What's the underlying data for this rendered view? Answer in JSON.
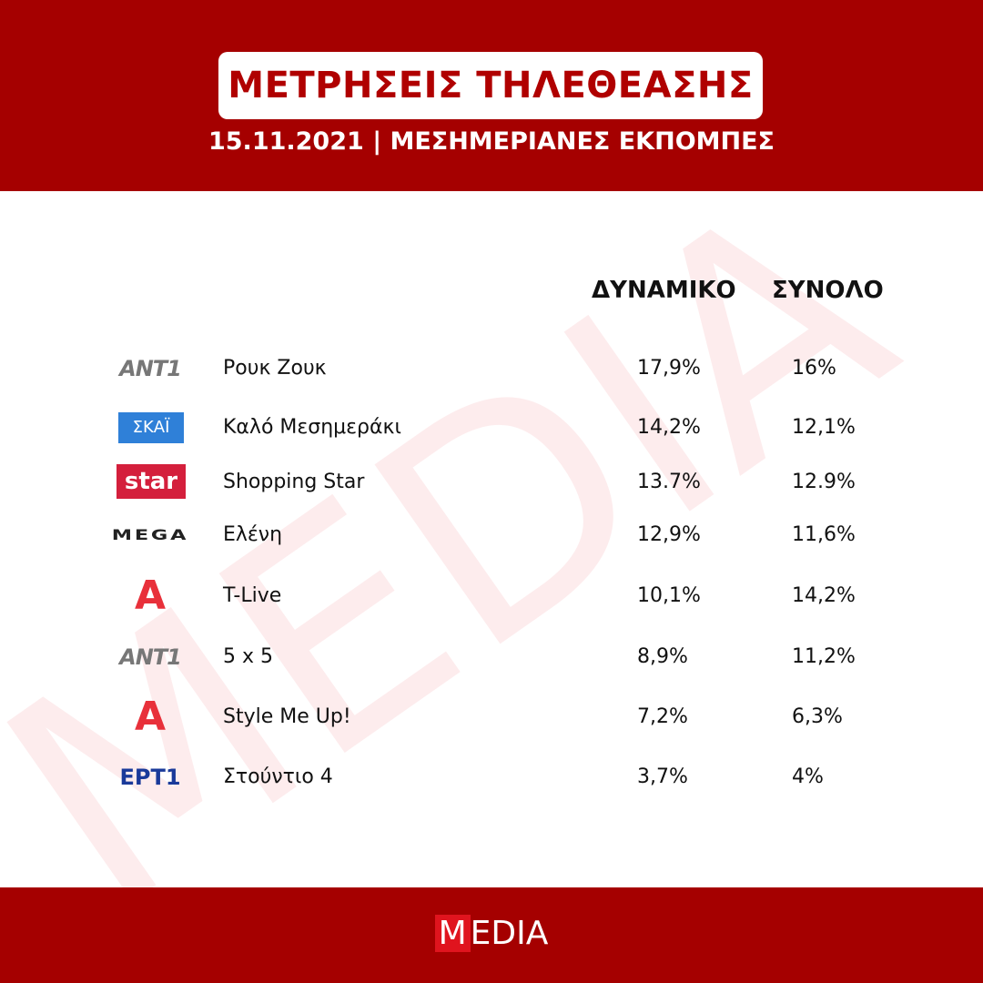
{
  "header": {
    "title": "ΜΕΤΡΗΣΕΙΣ ΤΗΛΕΘΕΑΣΗΣ",
    "subtitle": "15.11.2021 | ΜΕΣΗΜΕΡΙΑΝΕΣ ΕΚΠΟΜΠΕΣ"
  },
  "table": {
    "columns": [
      "ΔΥΝΑΜΙΚΟ",
      "ΣΥΝΟΛΟ"
    ],
    "rows": [
      {
        "logo": "ANT1",
        "show": "Ρουκ Ζουκ",
        "dynamiko": "17,9%",
        "synolo": "16%"
      },
      {
        "logo": "ΣΚΑΪ",
        "show": "Καλό Μεσημεράκι",
        "dynamiko": "14,2%",
        "synolo": "12,1%"
      },
      {
        "logo": "star",
        "show": "Shopping Star",
        "dynamiko": "13.7%",
        "synolo": "12.9%"
      },
      {
        "logo": "MEGA",
        "show": "Ελένη",
        "dynamiko": "12,9%",
        "synolo": "11,6%"
      },
      {
        "logo": "A",
        "show": "T-Live",
        "dynamiko": "10,1%",
        "synolo": "14,2%"
      },
      {
        "logo": "ANT1",
        "show": "5 x 5",
        "dynamiko": "8,9%",
        "synolo": "11,2%"
      },
      {
        "logo": "A",
        "show": "Style Me Up!",
        "dynamiko": "7,2%",
        "synolo": "6,3%"
      },
      {
        "logo": "ΕΡΤ1",
        "show": "Στούντιο 4",
        "dynamiko": "3,7%",
        "synolo": "4%"
      }
    ]
  },
  "watermark": "MEDIA",
  "footer": {
    "logo_mark": "M",
    "logo_rest": "EDIA"
  }
}
